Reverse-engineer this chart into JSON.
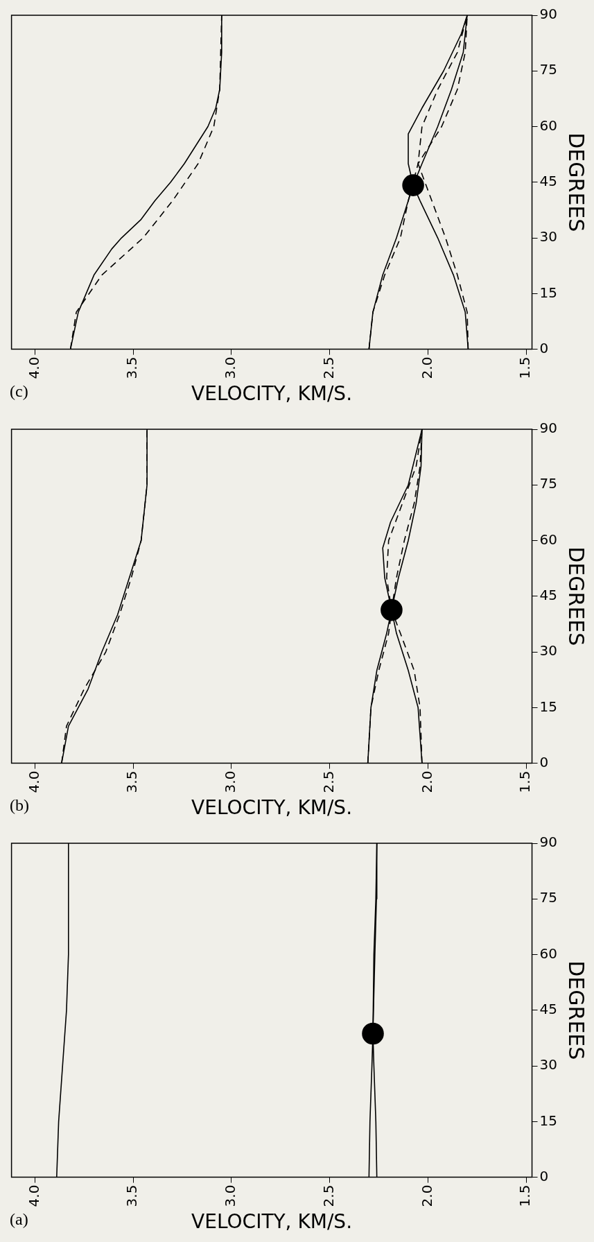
{
  "chart_data": [
    {
      "type": "line",
      "title": "(a)",
      "xlabel": "VELOCITY, KM/S.",
      "ylabel": "DEGREES",
      "xlim": [
        4.12,
        1.47
      ],
      "xticks": [
        {
          "value": 4,
          "label": "4.0"
        },
        {
          "value": 3.5,
          "label": "3.5"
        },
        {
          "value": 3,
          "label": "3.0"
        },
        {
          "value": 2.5,
          "label": "2.5"
        },
        {
          "value": 2,
          "label": "2.0"
        },
        {
          "value": 1.5,
          "label": "1.5"
        }
      ],
      "ylim": [
        0,
        90
      ],
      "yticks": [
        0,
        15,
        30,
        45,
        60,
        75,
        90
      ],
      "series": [
        {
          "color": "#000000",
          "line_style": "solid",
          "x": [
            3.89,
            3.88,
            3.86,
            3.84,
            3.83,
            3.83
          ],
          "values": [
            0,
            15,
            30,
            45,
            60,
            90
          ]
        },
        {
          "color": "#000000",
          "line_style": "solid",
          "x": [
            2.3,
            2.295,
            2.285,
            2.28,
            2.275,
            2.265,
            2.26
          ],
          "values": [
            0,
            15,
            30,
            38.7,
            60,
            75,
            90
          ]
        },
        {
          "color": "#000000",
          "line_style": "solid",
          "x": [
            2.26,
            2.265,
            2.275,
            2.28,
            2.27,
            2.262,
            2.26
          ],
          "values": [
            0,
            15,
            30,
            38.7,
            60,
            75,
            90
          ]
        },
        {
          "type": "scatter",
          "marker": "circle",
          "color": "#000000",
          "x": [
            2.28
          ],
          "values": [
            38.7
          ]
        }
      ]
    },
    {
      "type": "line",
      "title": "(b)",
      "xlabel": "VELOCITY, KM/S.",
      "ylabel": "DEGREES",
      "xlim": [
        4.12,
        1.47
      ],
      "xticks": [
        {
          "value": 4,
          "label": "4.0"
        },
        {
          "value": 3.5,
          "label": "3.5"
        },
        {
          "value": 3,
          "label": "3.0"
        },
        {
          "value": 2.5,
          "label": "2.5"
        },
        {
          "value": 2,
          "label": "2.0"
        },
        {
          "value": 1.5,
          "label": "1.5"
        }
      ],
      "ylim": [
        0,
        90
      ],
      "yticks": [
        0,
        15,
        30,
        45,
        60,
        75,
        90
      ],
      "series": [
        {
          "color": "#000000",
          "line_style": "solid",
          "x": [
            3.865,
            3.83,
            3.73,
            3.66,
            3.58,
            3.52,
            3.46,
            3.43,
            3.43
          ],
          "values": [
            0,
            10,
            20,
            30,
            40,
            50,
            60,
            75,
            90
          ]
        },
        {
          "color": "#000000",
          "line_style": "dashed",
          "x": [
            3.865,
            3.84,
            3.75,
            3.64,
            3.57,
            3.51,
            3.46,
            3.43,
            3.43
          ],
          "values": [
            0,
            10,
            20,
            30,
            40,
            50,
            60,
            75,
            90
          ]
        },
        {
          "color": "#000000",
          "line_style": "solid",
          "x": [
            2.306,
            2.29,
            2.26,
            2.21,
            2.185,
            2.15,
            2.1,
            2.06,
            2.035,
            2.03
          ],
          "values": [
            0,
            15,
            25,
            35,
            41.3,
            50,
            60,
            70,
            80,
            90
          ]
        },
        {
          "color": "#000000",
          "line_style": "solid",
          "x": [
            2.03,
            2.05,
            2.1,
            2.16,
            2.185,
            2.22,
            2.23,
            2.19,
            2.1,
            2.03
          ],
          "values": [
            0,
            15,
            25,
            35,
            41.3,
            50,
            58,
            65,
            75,
            90
          ]
        },
        {
          "color": "#000000",
          "line_style": "dashed",
          "x": [
            2.306,
            2.29,
            2.25,
            2.2,
            2.185,
            2.16,
            2.12,
            2.07,
            2.04,
            2.03
          ],
          "values": [
            0,
            15,
            25,
            35,
            41.3,
            50,
            60,
            70,
            80,
            90
          ]
        },
        {
          "color": "#000000",
          "line_style": "dashed",
          "x": [
            2.03,
            2.04,
            2.07,
            2.14,
            2.185,
            2.21,
            2.2,
            2.13,
            2.06,
            2.03
          ],
          "values": [
            0,
            15,
            25,
            35,
            41.3,
            50,
            60,
            70,
            80,
            90
          ]
        },
        {
          "type": "scatter",
          "marker": "circle",
          "color": "#000000",
          "x": [
            2.185
          ],
          "values": [
            41.3
          ]
        }
      ]
    },
    {
      "type": "line",
      "title": "(c)",
      "xlabel": "VELOCITY, KM/S.",
      "ylabel": "DEGREES",
      "xlim": [
        4.12,
        1.47
      ],
      "xticks": [
        {
          "value": 4,
          "label": "4.0"
        },
        {
          "value": 3.5,
          "label": "3.5"
        },
        {
          "value": 3,
          "label": "3.0"
        },
        {
          "value": 2.5,
          "label": "2.5"
        },
        {
          "value": 2,
          "label": "2.0"
        },
        {
          "value": 1.5,
          "label": "1.5"
        }
      ],
      "ylim": [
        0,
        90
      ],
      "yticks": [
        0,
        15,
        30,
        45,
        60,
        75,
        90
      ],
      "series": [
        {
          "color": "#000000",
          "line_style": "solid",
          "x": [
            3.82,
            3.78,
            3.74,
            3.7,
            3.61,
            3.56,
            3.46,
            3.39,
            3.31,
            3.24,
            3.18,
            3.12,
            3.08,
            3.06,
            3.05,
            3.05
          ],
          "values": [
            0,
            10,
            15,
            20,
            27,
            30,
            35,
            40,
            45,
            50,
            55,
            60,
            65,
            70,
            80,
            90
          ]
        },
        {
          "color": "#000000",
          "line_style": "dashed",
          "x": [
            3.82,
            3.79,
            3.66,
            3.45,
            3.3,
            3.17,
            3.09,
            3.06,
            3.05
          ],
          "values": [
            0,
            10,
            20,
            30,
            40,
            50,
            60,
            70,
            90
          ]
        },
        {
          "color": "#000000",
          "line_style": "solid",
          "x": [
            2.3,
            2.28,
            2.23,
            2.16,
            2.1,
            2.075,
            2.03,
            1.95,
            1.88,
            1.82,
            1.8
          ],
          "values": [
            0,
            10,
            20,
            30,
            40,
            44.2,
            50,
            60,
            70,
            80,
            90
          ]
        },
        {
          "color": "#000000",
          "line_style": "solid",
          "x": [
            1.795,
            1.81,
            1.87,
            1.95,
            2.04,
            2.075,
            2.1,
            2.1,
            2.03,
            1.92,
            1.83,
            1.8
          ],
          "values": [
            0,
            10,
            20,
            30,
            40,
            44.2,
            50,
            58,
            65,
            75,
            85,
            90
          ]
        },
        {
          "color": "#000000",
          "line_style": "dashed",
          "x": [
            2.3,
            2.28,
            2.22,
            2.14,
            2.1,
            2.05,
            1.93,
            1.85,
            1.81,
            1.8
          ],
          "values": [
            0,
            10,
            20,
            30,
            40,
            50,
            60,
            70,
            80,
            90
          ]
        },
        {
          "color": "#000000",
          "line_style": "dashed",
          "x": [
            1.795,
            1.8,
            1.85,
            1.91,
            1.98,
            2.05,
            2.03,
            1.95,
            1.85,
            1.8
          ],
          "values": [
            0,
            10,
            20,
            30,
            40,
            50,
            60,
            70,
            80,
            90
          ]
        },
        {
          "type": "scatter",
          "marker": "circle",
          "color": "#000000",
          "x": [
            2.075
          ],
          "values": [
            44.2
          ]
        }
      ]
    }
  ]
}
